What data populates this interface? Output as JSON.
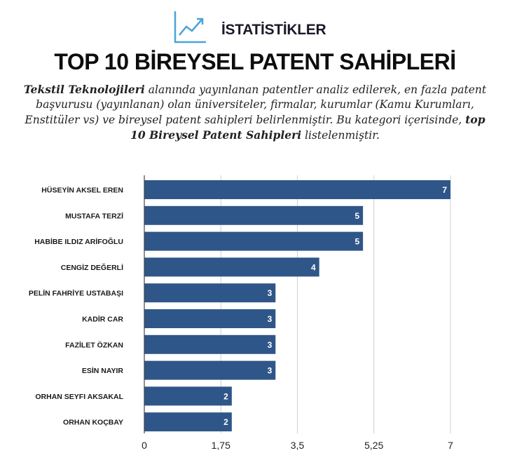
{
  "header": {
    "label": "İSTATİSTİKLER",
    "icon": "line-chart-icon",
    "icon_color": "#4aa3d8"
  },
  "title": "TOP 10 BİREYSEL PATENT SAHİPLERİ",
  "description": {
    "bold1": "Tekstil Teknolojileri",
    "text1": " alanında yayınlanan patentler analiz edilerek, en fazla patent başvurusu (yayınlanan) olan üniversiteler, firmalar, kurumlar (Kamu Kurumları, Enstitüler vs) ve bireysel patent sahipleri belirlenmiştir. Bu kategori içerisinde, ",
    "bold2": "top 10 Bireysel Patent Sahipleri",
    "text2": " listelenmiştir."
  },
  "chart_data": {
    "type": "bar",
    "orientation": "horizontal",
    "categories": [
      "HÜSEYİN AKSEL EREN",
      "MUSTAFA TERZİ",
      "HABİBE ILDIZ ARİFOĞLU",
      "CENGİZ DEĞERLİ",
      "PELİN FAHRİYE USTABAŞI",
      "KADİR CAR",
      "FAZİLET ÖZKAN",
      "ESİN NAYIR",
      "ORHAN SEYFI AKSAKAL",
      "ORHAN KOÇBAY"
    ],
    "values": [
      7,
      5,
      5,
      4,
      3,
      3,
      3,
      3,
      2,
      2
    ],
    "data_labels": [
      "7",
      "5",
      "5",
      "4",
      "3",
      "3",
      "3",
      "3",
      "2",
      "2"
    ],
    "xlim": [
      0,
      7
    ],
    "xticks": [
      0,
      1.75,
      3.5,
      5.25,
      7
    ],
    "xtick_labels": [
      "0",
      "1,75",
      "3,5",
      "5,25",
      "7"
    ],
    "grid": true,
    "bar_color": "#2f5688"
  }
}
